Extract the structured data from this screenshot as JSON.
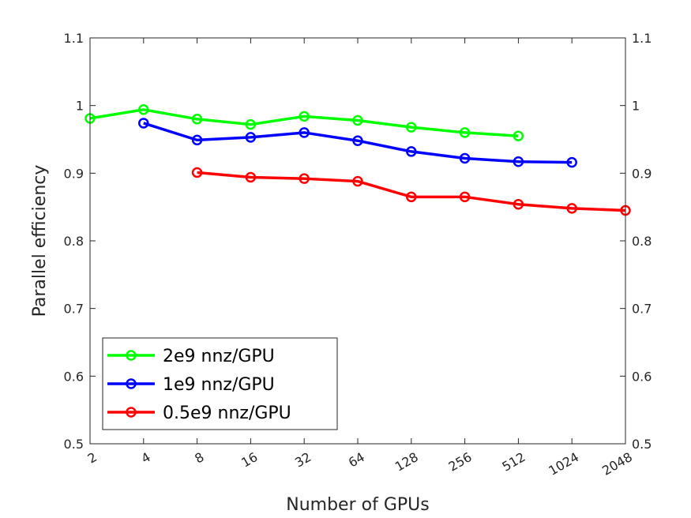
{
  "chart_data": {
    "type": "line",
    "title": "",
    "xlabel": "Number of GPUs",
    "ylabel": "Parallel efficiency",
    "x_scale": "log2",
    "x_ticks": [
      2,
      4,
      8,
      16,
      32,
      64,
      128,
      256,
      512,
      1024,
      2048
    ],
    "xlim": [
      2,
      2048
    ],
    "ylim": [
      0.5,
      1.1
    ],
    "y_ticks": [
      0.5,
      0.6,
      0.7,
      0.8,
      0.9,
      1,
      1.1
    ],
    "y_tick_labels": [
      "0.5",
      "0.6",
      "0.7",
      "0.8",
      "0.9",
      "1",
      "1.1"
    ],
    "right_axis": true,
    "grid": false,
    "legend_position": "bottom-left",
    "series": [
      {
        "name": "2e9 nnz/GPU",
        "color": "#00ff00",
        "x": [
          2,
          4,
          8,
          16,
          32,
          64,
          128,
          256,
          512
        ],
        "values": [
          0.981,
          0.994,
          0.98,
          0.972,
          0.984,
          0.978,
          0.968,
          0.96,
          0.955
        ]
      },
      {
        "name": "1e9 nnz/GPU",
        "color": "#0000ff",
        "x": [
          4,
          8,
          16,
          32,
          64,
          128,
          256,
          512,
          1024
        ],
        "values": [
          0.974,
          0.949,
          0.953,
          0.96,
          0.948,
          0.932,
          0.922,
          0.917,
          0.916
        ]
      },
      {
        "name": "0.5e9 nnz/GPU",
        "color": "#ff0000",
        "x": [
          8,
          16,
          32,
          64,
          128,
          256,
          512,
          1024,
          2048
        ],
        "values": [
          0.901,
          0.894,
          0.892,
          0.888,
          0.865,
          0.865,
          0.854,
          0.848,
          0.845
        ]
      }
    ]
  }
}
